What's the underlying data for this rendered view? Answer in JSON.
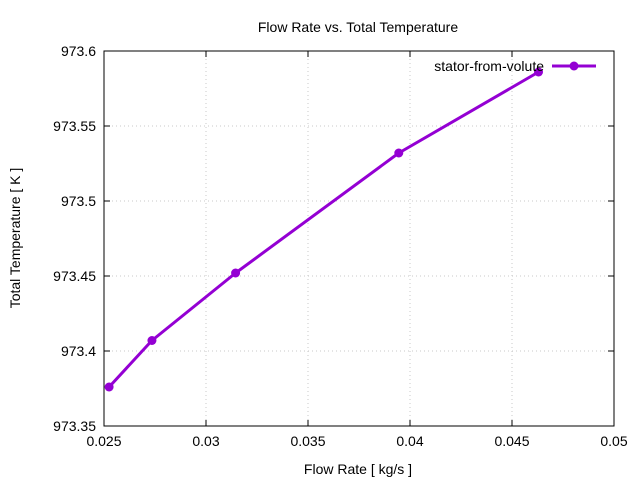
{
  "chart_data": {
    "type": "line",
    "title": "Flow Rate vs. Total Temperature",
    "xlabel": "Flow Rate [ kg/s ]",
    "ylabel": "Total Temperature [ K ]",
    "xlim": [
      0.025,
      0.05
    ],
    "ylim": [
      973.35,
      973.6
    ],
    "xticks": [
      0.025,
      0.03,
      0.035,
      0.04,
      0.045,
      0.05
    ],
    "xtick_labels": [
      "0.025",
      "0.03",
      "0.035",
      "0.04",
      "0.045",
      "0.05"
    ],
    "yticks": [
      973.35,
      973.4,
      973.45,
      973.5,
      973.55,
      973.6
    ],
    "ytick_labels": [
      "973.35",
      "973.4",
      "973.45",
      "973.5",
      "973.55",
      "973.6"
    ],
    "grid": true,
    "legend_position": "top-right",
    "series": [
      {
        "name": "stator-from-volute",
        "color": "#9400d3",
        "marker": "circle",
        "x": [
          0.02525,
          0.02735,
          0.03145,
          0.03945,
          0.0463
        ],
        "y": [
          973.376,
          973.407,
          973.452,
          973.532,
          973.586
        ]
      }
    ]
  }
}
